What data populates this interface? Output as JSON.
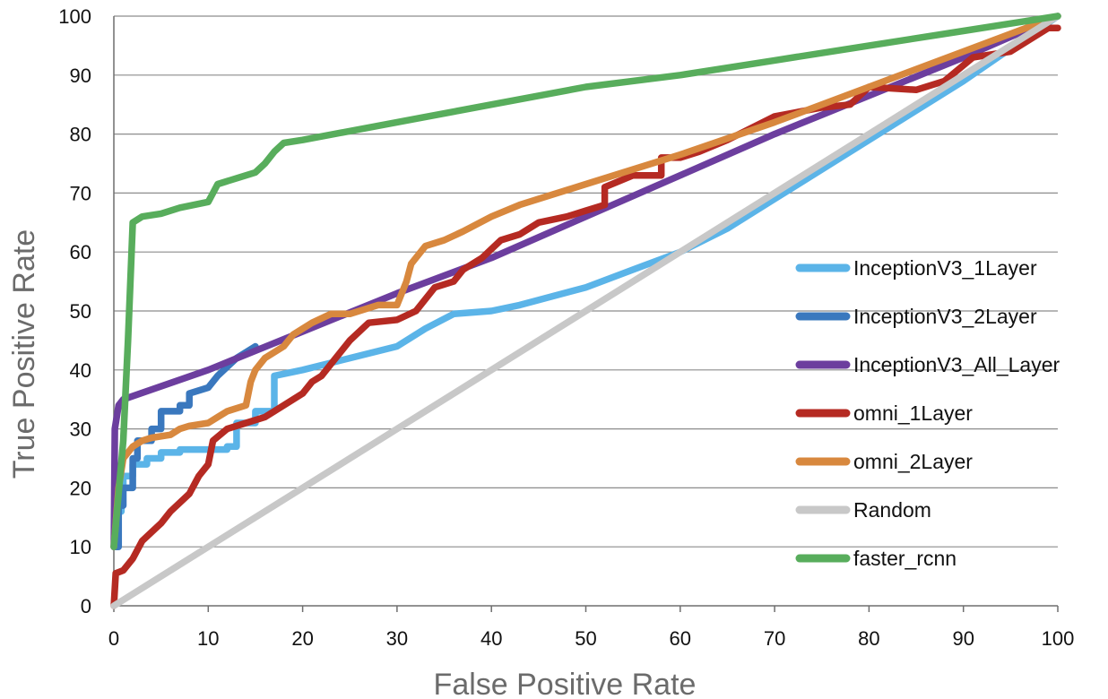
{
  "chart_data": {
    "type": "line",
    "title": "",
    "xlabel": "False Positive Rate",
    "ylabel": "True Positive Rate",
    "xlim": [
      0,
      100
    ],
    "ylim": [
      0,
      100
    ],
    "x_ticks": [
      0,
      10,
      20,
      30,
      40,
      50,
      60,
      70,
      80,
      90,
      100
    ],
    "y_ticks": [
      0,
      10,
      20,
      30,
      40,
      50,
      60,
      70,
      80,
      90,
      100
    ],
    "grid": "horizontal",
    "legend_position": "right",
    "series": [
      {
        "name": "InceptionV3_1Layer",
        "color": "#5BB4E8",
        "points": [
          [
            0,
            10
          ],
          [
            0.3,
            10
          ],
          [
            0.3,
            16
          ],
          [
            0.8,
            16
          ],
          [
            0.8,
            20
          ],
          [
            1,
            20
          ],
          [
            1,
            22
          ],
          [
            2,
            22
          ],
          [
            2,
            24
          ],
          [
            3.5,
            24
          ],
          [
            3.5,
            25
          ],
          [
            5,
            25
          ],
          [
            5,
            26
          ],
          [
            7,
            26
          ],
          [
            7,
            26.5
          ],
          [
            10,
            26.5
          ],
          [
            12,
            26.5
          ],
          [
            12,
            27
          ],
          [
            13,
            27
          ],
          [
            13,
            31
          ],
          [
            15,
            31
          ],
          [
            15,
            33
          ],
          [
            17,
            33
          ],
          [
            17,
            39
          ],
          [
            20,
            40
          ],
          [
            25,
            42
          ],
          [
            30,
            44
          ],
          [
            33,
            47
          ],
          [
            36,
            49.5
          ],
          [
            40,
            50
          ],
          [
            43,
            51
          ],
          [
            50,
            54
          ],
          [
            55,
            57
          ],
          [
            60,
            60
          ],
          [
            65,
            64
          ],
          [
            70,
            69
          ],
          [
            80,
            79
          ],
          [
            90,
            89
          ],
          [
            100,
            100
          ]
        ]
      },
      {
        "name": "InceptionV3_2Layer",
        "color": "#3A78BE",
        "points": [
          [
            0,
            10
          ],
          [
            0.5,
            10
          ],
          [
            0.5,
            17
          ],
          [
            1,
            17
          ],
          [
            1,
            20
          ],
          [
            2,
            20
          ],
          [
            2,
            25
          ],
          [
            2.5,
            25
          ],
          [
            2.5,
            28
          ],
          [
            4,
            28
          ],
          [
            4,
            30
          ],
          [
            5,
            30
          ],
          [
            5,
            33
          ],
          [
            7,
            33
          ],
          [
            7,
            34
          ],
          [
            8,
            34
          ],
          [
            8,
            36
          ],
          [
            10,
            37
          ],
          [
            11,
            39
          ],
          [
            13,
            42
          ],
          [
            15,
            44
          ]
        ]
      },
      {
        "name": "InceptionV3_All_Layer",
        "color": "#6C3E9E",
        "points": [
          [
            0,
            10
          ],
          [
            0.1,
            30
          ],
          [
            0.5,
            34
          ],
          [
            1,
            35
          ],
          [
            10,
            40
          ],
          [
            20,
            46.5
          ],
          [
            30,
            53
          ],
          [
            40,
            59
          ],
          [
            50,
            66
          ],
          [
            60,
            73
          ],
          [
            70,
            80
          ],
          [
            80,
            86.5
          ],
          [
            90,
            93
          ],
          [
            100,
            100
          ]
        ]
      },
      {
        "name": "omni_1Layer",
        "color": "#B52A22",
        "points": [
          [
            0,
            0
          ],
          [
            0.2,
            5.5
          ],
          [
            1,
            6
          ],
          [
            2,
            8
          ],
          [
            3,
            11
          ],
          [
            4,
            12.5
          ],
          [
            5,
            14
          ],
          [
            6,
            16
          ],
          [
            8,
            19
          ],
          [
            9,
            22
          ],
          [
            10,
            24
          ],
          [
            10.5,
            28
          ],
          [
            12,
            30
          ],
          [
            14,
            31
          ],
          [
            16,
            32
          ],
          [
            18,
            34
          ],
          [
            20,
            36
          ],
          [
            21,
            38
          ],
          [
            22,
            39
          ],
          [
            23,
            41
          ],
          [
            25,
            45
          ],
          [
            27,
            48
          ],
          [
            30,
            48.5
          ],
          [
            32,
            50
          ],
          [
            34,
            54
          ],
          [
            36,
            55
          ],
          [
            37,
            57
          ],
          [
            39,
            59
          ],
          [
            41,
            62
          ],
          [
            43,
            63
          ],
          [
            45,
            65
          ],
          [
            48,
            66
          ],
          [
            50,
            67
          ],
          [
            52,
            68
          ],
          [
            52,
            71
          ],
          [
            55,
            73
          ],
          [
            58,
            73
          ],
          [
            58,
            76
          ],
          [
            60,
            76
          ],
          [
            62,
            77
          ],
          [
            65,
            79
          ],
          [
            70,
            83
          ],
          [
            75,
            84.5
          ],
          [
            78,
            85
          ],
          [
            80,
            88
          ],
          [
            85,
            87.5
          ],
          [
            88,
            89
          ],
          [
            91,
            93
          ],
          [
            95,
            94
          ],
          [
            97,
            96
          ],
          [
            99,
            98
          ],
          [
            100,
            98
          ]
        ]
      },
      {
        "name": "omni_2Layer",
        "color": "#D8883E",
        "points": [
          [
            0,
            10
          ],
          [
            0.5,
            20
          ],
          [
            1,
            25
          ],
          [
            2,
            27
          ],
          [
            3,
            28
          ],
          [
            4,
            28.5
          ],
          [
            6,
            29
          ],
          [
            7,
            30
          ],
          [
            8,
            30.5
          ],
          [
            10,
            31
          ],
          [
            11,
            32
          ],
          [
            12,
            33
          ],
          [
            14,
            34
          ],
          [
            14.5,
            38
          ],
          [
            15,
            40
          ],
          [
            16,
            42
          ],
          [
            18,
            44
          ],
          [
            19,
            46
          ],
          [
            21,
            48
          ],
          [
            23,
            49.5
          ],
          [
            25,
            49.5
          ],
          [
            28,
            51
          ],
          [
            30,
            51
          ],
          [
            31,
            55
          ],
          [
            31.5,
            58
          ],
          [
            33,
            61
          ],
          [
            35,
            62
          ],
          [
            37,
            63.5
          ],
          [
            40,
            66
          ],
          [
            43,
            68
          ],
          [
            50,
            71.5
          ],
          [
            60,
            76.5
          ],
          [
            70,
            82
          ],
          [
            80,
            88
          ],
          [
            90,
            94
          ],
          [
            100,
            100
          ]
        ]
      },
      {
        "name": "Random",
        "color": "#C8C8C8",
        "points": [
          [
            0,
            0
          ],
          [
            100,
            100
          ]
        ]
      },
      {
        "name": "faster_rcnn",
        "color": "#58AD5C",
        "points": [
          [
            0,
            10
          ],
          [
            1,
            28
          ],
          [
            1.5,
            45
          ],
          [
            2,
            65
          ],
          [
            3,
            66
          ],
          [
            5,
            66.5
          ],
          [
            7,
            67.5
          ],
          [
            10,
            68.5
          ],
          [
            10.5,
            70
          ],
          [
            11,
            71.5
          ],
          [
            13,
            72.5
          ],
          [
            15,
            73.5
          ],
          [
            16,
            75
          ],
          [
            17,
            77
          ],
          [
            18,
            78.5
          ],
          [
            20,
            79
          ],
          [
            30,
            82
          ],
          [
            40,
            85
          ],
          [
            50,
            88
          ],
          [
            60,
            90
          ],
          [
            70,
            92.5
          ],
          [
            80,
            95
          ],
          [
            90,
            97.5
          ],
          [
            100,
            100
          ]
        ]
      }
    ]
  }
}
